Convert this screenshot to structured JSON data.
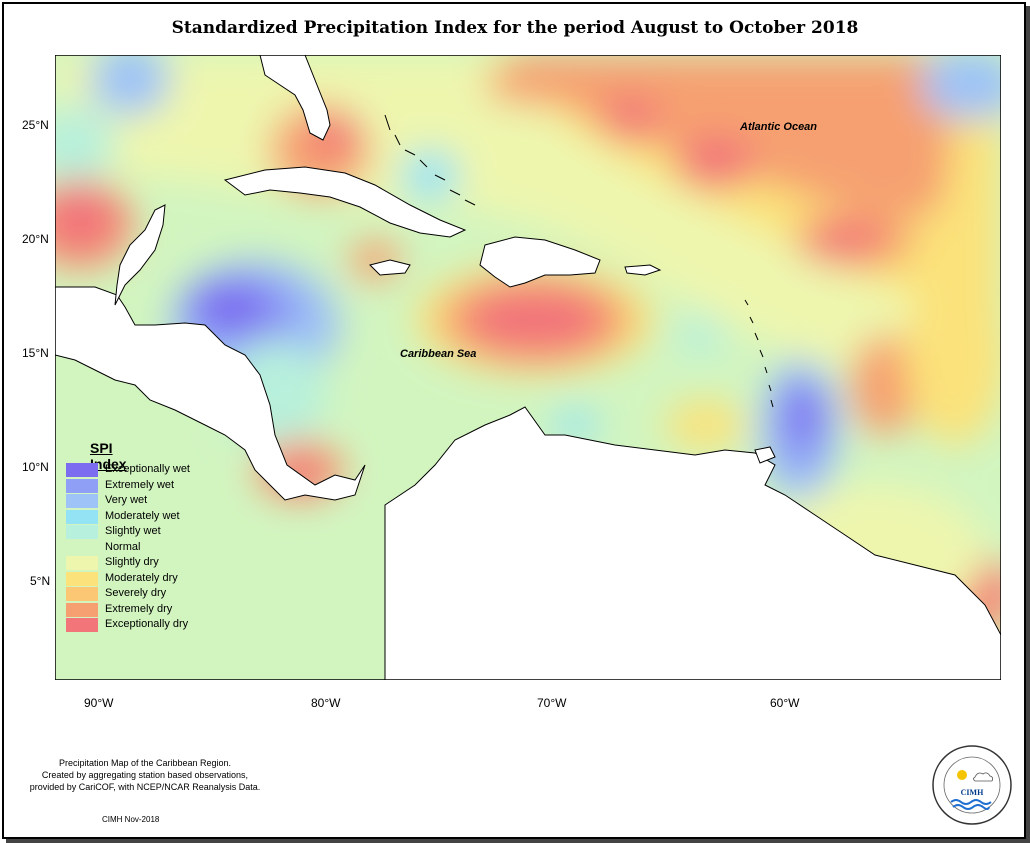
{
  "title": "Standardized Precipitation Index for the period August to October 2018",
  "labels": {
    "caribbean_sea": "Caribbean Sea",
    "atlantic_ocean": "Atlantic Ocean"
  },
  "axes": {
    "lat_ticks": [
      "25°N",
      "20°N",
      "15°N",
      "10°N",
      "5°N"
    ],
    "lon_ticks": [
      "90°W",
      "80°W",
      "70°W",
      "60°W"
    ]
  },
  "legend": {
    "title": "SPI Index",
    "items": [
      {
        "label": "Exceptionally wet",
        "color": "#7b6cf0"
      },
      {
        "label": "Extremely wet",
        "color": "#8f9ff5"
      },
      {
        "label": "Very wet",
        "color": "#9dc3f7"
      },
      {
        "label": "Moderately wet",
        "color": "#94e3f5"
      },
      {
        "label": "Slightly wet",
        "color": "#b7f0dc"
      },
      {
        "label": "Normal",
        "color": "#d2f5c0"
      },
      {
        "label": "Slightly dry",
        "color": "#eef6ae"
      },
      {
        "label": "Moderately dry",
        "color": "#fbe27a"
      },
      {
        "label": "Severely dry",
        "color": "#fcc774"
      },
      {
        "label": "Extremely dry",
        "color": "#f6a071"
      },
      {
        "label": "Exceptionally dry",
        "color": "#f2757a"
      }
    ]
  },
  "footnote": {
    "line1": "Precipitation Map of the Caribbean Region.",
    "line2": "Created by aggregating station based observations,",
    "line3": "provided by CariCOF, with NCEP/NCAR Reanalysis Data."
  },
  "credit": "CIMH Nov-2018",
  "logo": {
    "text": "CIMH",
    "ring_text": "Caribbean Institute for Meteorology and Hydrology"
  }
}
